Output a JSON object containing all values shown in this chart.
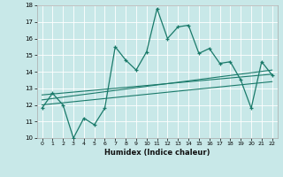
{
  "xlabel": "Humidex (Indice chaleur)",
  "bg_color": "#c8e8e8",
  "grid_color": "#ffffff",
  "line_color": "#1a7a6a",
  "xlim": [
    -0.5,
    22.5
  ],
  "ylim": [
    10,
    18
  ],
  "xticks": [
    0,
    1,
    2,
    3,
    4,
    5,
    6,
    7,
    8,
    9,
    10,
    11,
    12,
    13,
    14,
    15,
    16,
    17,
    18,
    19,
    20,
    21,
    22
  ],
  "yticks": [
    10,
    11,
    12,
    13,
    14,
    15,
    16,
    17,
    18
  ],
  "main_x": [
    0,
    1,
    2,
    3,
    4,
    5,
    6,
    7,
    8,
    9,
    10,
    11,
    12,
    13,
    14,
    15,
    16,
    17,
    18,
    19,
    20,
    21,
    22
  ],
  "main_y": [
    11.8,
    12.7,
    12.0,
    10.0,
    11.2,
    10.8,
    11.8,
    15.5,
    14.7,
    14.1,
    15.2,
    17.8,
    16.0,
    16.7,
    16.8,
    15.1,
    15.4,
    14.5,
    14.6,
    13.5,
    11.8,
    14.6,
    13.8
  ],
  "line1_x": [
    0,
    22
  ],
  "line1_y": [
    12.3,
    14.1
  ],
  "line2_x": [
    0,
    22
  ],
  "line2_y": [
    12.6,
    13.85
  ],
  "line3_x": [
    0,
    22
  ],
  "line3_y": [
    12.0,
    13.4
  ]
}
